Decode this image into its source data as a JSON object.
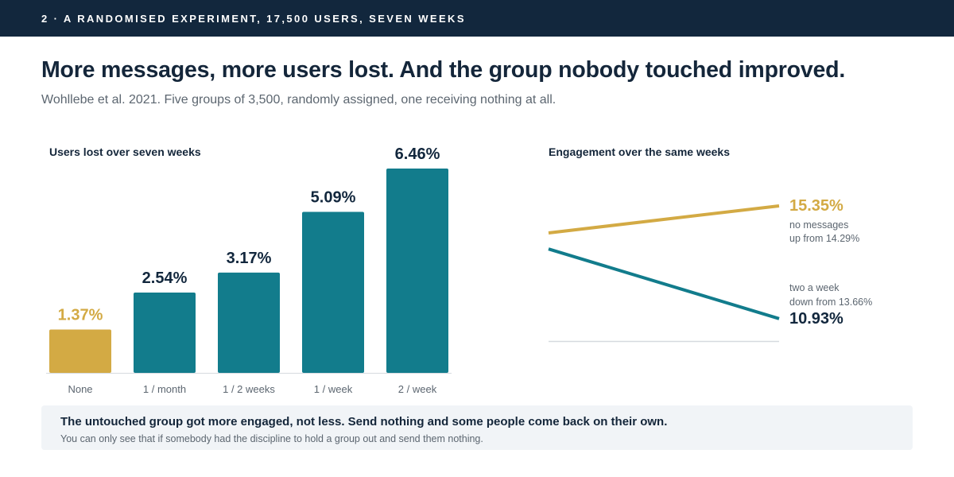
{
  "header": {
    "kicker": "2 · A RANDOMISED EXPERIMENT, 17,500 USERS, SEVEN WEEKS",
    "title": "More messages, more users lost. And the group nobody touched improved.",
    "subtitle": "Wohllebe et al. 2021. Five groups of 3,500, randomly assigned, one receiving nothing at all."
  },
  "colors": {
    "teal": "#127c8c",
    "gold": "#d3aa44",
    "navy": "#12273d",
    "axis": "#d6dadf",
    "muted": "#5c6670"
  },
  "chart_data": [
    {
      "type": "bar",
      "title": "Users lost over seven weeks",
      "categories": [
        "None",
        "1 / month",
        "1 / 2 weeks",
        "1 / week",
        "2 / week"
      ],
      "values": [
        1.37,
        2.54,
        3.17,
        5.09,
        6.46
      ],
      "value_labels": [
        "1.37%",
        "2.54%",
        "3.17%",
        "5.09%",
        "6.46%"
      ],
      "highlight_index": 0,
      "unit": "%"
    },
    {
      "type": "line",
      "title": "Engagement over the same weeks",
      "unit": "%",
      "series": [
        {
          "key": "none",
          "start": 14.29,
          "end": 15.35,
          "end_label": "15.35%",
          "note_line1": "no messages",
          "note_line2": "up from 14.29%",
          "color": "#d3aa44"
        },
        {
          "key": "twice",
          "start": 13.66,
          "end": 10.93,
          "end_label": "10.93%",
          "note_line1": "two a week",
          "note_line2": "down from 13.66%",
          "color": "#127c8c"
        }
      ]
    }
  ],
  "callout": {
    "headline": "The untouched group got more engaged, not less. Send nothing and some people come back on their own.",
    "note": "You can only see that if somebody had the discipline to hold a group out and send them nothing."
  }
}
